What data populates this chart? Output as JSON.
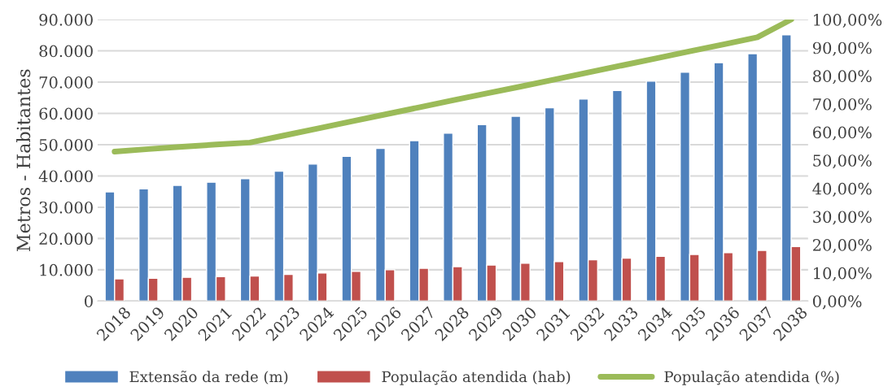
{
  "chart_data": {
    "type": "bar",
    "ylabel": "Metros - Habitantes",
    "categories": [
      "2018",
      "2019",
      "2020",
      "2021",
      "2022",
      "2023",
      "2024",
      "2025",
      "2026",
      "2027",
      "2028",
      "2029",
      "2030",
      "2031",
      "2032",
      "2033",
      "2034",
      "2035",
      "2036",
      "2037",
      "2038"
    ],
    "series": [
      {
        "name": "Extensão da rede (m)",
        "color": "#4f81bd",
        "values": [
          34900,
          35900,
          37000,
          38000,
          39100,
          41500,
          43800,
          46300,
          48800,
          51300,
          53700,
          56400,
          59100,
          61800,
          64600,
          67300,
          70300,
          73200,
          76200,
          79100,
          85100
        ]
      },
      {
        "name": "População atendida (hab)",
        "color": "#c0504d",
        "values": [
          7100,
          7300,
          7600,
          7800,
          8000,
          8500,
          9000,
          9500,
          10000,
          10500,
          11000,
          11500,
          12100,
          12600,
          13200,
          13700,
          14300,
          14900,
          15500,
          16200,
          17400
        ]
      },
      {
        "name": "População atendida (%)",
        "color": "#9bbb59",
        "type": "line",
        "axis": "y2",
        "values": [
          53.1,
          54.0,
          54.8,
          55.6,
          56.3,
          58.8,
          61.3,
          63.8,
          66.3,
          68.8,
          71.3,
          73.8,
          76.2,
          78.7,
          81.2,
          83.7,
          86.2,
          88.7,
          91.2,
          93.7,
          100
        ]
      }
    ],
    "ylim": [
      0,
      90000
    ],
    "yticks": [
      {
        "value": 0,
        "label": "0"
      },
      {
        "value": 10000,
        "label": "10.000"
      },
      {
        "value": 20000,
        "label": "20.000"
      },
      {
        "value": 30000,
        "label": "30.000"
      },
      {
        "value": 40000,
        "label": "40.000"
      },
      {
        "value": 50000,
        "label": "50.000"
      },
      {
        "value": 60000,
        "label": "60.000"
      },
      {
        "value": 70000,
        "label": "70.000"
      },
      {
        "value": 80000,
        "label": "80.000"
      },
      {
        "value": 90000,
        "label": "90.000"
      }
    ],
    "y2lim": [
      0,
      100
    ],
    "y2ticks": [
      {
        "value": 0,
        "label": "0,00%"
      },
      {
        "value": 10,
        "label": "10,00%"
      },
      {
        "value": 20,
        "label": "20,00%"
      },
      {
        "value": 30,
        "label": "30,00%"
      },
      {
        "value": 40,
        "label": "40,00%"
      },
      {
        "value": 50,
        "label": "50,00%"
      },
      {
        "value": 60,
        "label": "60,00%"
      },
      {
        "value": 70,
        "label": "70,00%"
      },
      {
        "value": 80,
        "label": "80,00%"
      },
      {
        "value": 90,
        "label": "90,00%"
      },
      {
        "value": 100,
        "label": "100,00%"
      }
    ],
    "grid": "y",
    "legend": "bottom",
    "marker": "none"
  }
}
